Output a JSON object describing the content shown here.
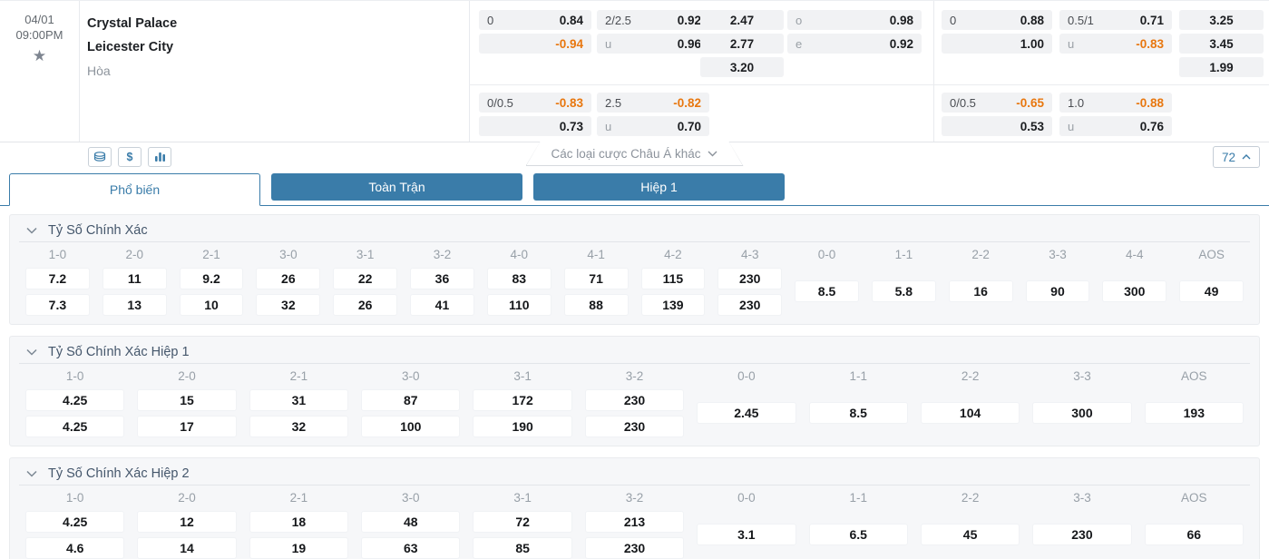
{
  "match": {
    "date": "04/01",
    "time": "09:00PM",
    "home_team": "Crystal Palace",
    "away_team": "Leicester City",
    "draw_label": "Hòa"
  },
  "odds_panel": {
    "full_time": {
      "handicap_r1": {
        "line": "0",
        "home": "0.84",
        "away": "-0.94"
      },
      "handicap_r2": {
        "line": "0/0.5",
        "home": "-0.83",
        "away": "0.73"
      },
      "over_under_r1": {
        "line": "2/2.5",
        "over": "0.92",
        "under_label": "u",
        "under": "0.96"
      },
      "over_under_r2": {
        "line": "2.5",
        "over": "-0.82",
        "under_label": "u",
        "under": "0.70"
      },
      "one_x_two": {
        "home": "2.47",
        "away": "2.77",
        "draw": "3.20"
      },
      "odd_even": {
        "odd_label": "o",
        "odd": "0.98",
        "even_label": "e",
        "even": "0.92"
      }
    },
    "first_half": {
      "handicap_r1": {
        "line": "0",
        "home": "0.88",
        "away": "1.00"
      },
      "handicap_r2": {
        "line": "0/0.5",
        "home": "-0.65",
        "away": "0.53"
      },
      "over_under_r1": {
        "line": "0.5/1",
        "over": "0.71",
        "under_label": "u",
        "under": "-0.83"
      },
      "over_under_r2": {
        "line": "1.0",
        "over": "-0.88",
        "under_label": "u",
        "under": "0.76"
      },
      "one_x_two": {
        "home": "3.25",
        "away": "3.45",
        "draw": "1.99"
      }
    }
  },
  "toolbar": {
    "icons": [
      "coins-stack-icon",
      "dollar-icon",
      "stats-bars-icon"
    ],
    "dropdown_label": "Các loại cược Châu Á khác",
    "market_count": "72"
  },
  "tabs": [
    {
      "label": "Phổ biến",
      "active": true
    },
    {
      "label": "Toàn Trận",
      "active": false
    },
    {
      "label": "Hiệp 1",
      "active": false
    }
  ],
  "colors": {
    "accent_blue": "#3a7ca9",
    "odds_negative_orange": "#e8770f"
  },
  "sections": [
    {
      "title": "Tỷ Số Chính Xác",
      "columns": [
        {
          "score": "1-0",
          "home": "7.2",
          "away": "7.3"
        },
        {
          "score": "2-0",
          "home": "11",
          "away": "13"
        },
        {
          "score": "2-1",
          "home": "9.2",
          "away": "10"
        },
        {
          "score": "3-0",
          "home": "26",
          "away": "32"
        },
        {
          "score": "3-1",
          "home": "22",
          "away": "26"
        },
        {
          "score": "3-2",
          "home": "36",
          "away": "41"
        },
        {
          "score": "4-0",
          "home": "83",
          "away": "110"
        },
        {
          "score": "4-1",
          "home": "71",
          "away": "88"
        },
        {
          "score": "4-2",
          "home": "115",
          "away": "139"
        },
        {
          "score": "4-3",
          "home": "230",
          "away": "230"
        },
        {
          "score": "0-0",
          "draw": "8.5"
        },
        {
          "score": "1-1",
          "draw": "5.8"
        },
        {
          "score": "2-2",
          "draw": "16"
        },
        {
          "score": "3-3",
          "draw": "90"
        },
        {
          "score": "4-4",
          "draw": "300"
        },
        {
          "score": "AOS",
          "draw": "49"
        }
      ]
    },
    {
      "title": "Tỷ Số Chính Xác Hiệp 1",
      "columns": [
        {
          "score": "1-0",
          "home": "4.25",
          "away": "4.25"
        },
        {
          "score": "2-0",
          "home": "15",
          "away": "17"
        },
        {
          "score": "2-1",
          "home": "31",
          "away": "32"
        },
        {
          "score": "3-0",
          "home": "87",
          "away": "100"
        },
        {
          "score": "3-1",
          "home": "172",
          "away": "190"
        },
        {
          "score": "3-2",
          "home": "230",
          "away": "230"
        },
        {
          "score": "0-0",
          "draw": "2.45"
        },
        {
          "score": "1-1",
          "draw": "8.5"
        },
        {
          "score": "2-2",
          "draw": "104"
        },
        {
          "score": "3-3",
          "draw": "300"
        },
        {
          "score": "AOS",
          "draw": "193"
        }
      ]
    },
    {
      "title": "Tỷ Số Chính Xác Hiệp 2",
      "columns": [
        {
          "score": "1-0",
          "home": "4.25",
          "away": "4.6"
        },
        {
          "score": "2-0",
          "home": "12",
          "away": "14"
        },
        {
          "score": "2-1",
          "home": "18",
          "away": "19"
        },
        {
          "score": "3-0",
          "home": "48",
          "away": "63"
        },
        {
          "score": "3-1",
          "home": "72",
          "away": "85"
        },
        {
          "score": "3-2",
          "home": "213",
          "away": "230"
        },
        {
          "score": "0-0",
          "draw": "3.1"
        },
        {
          "score": "1-1",
          "draw": "6.5"
        },
        {
          "score": "2-2",
          "draw": "45"
        },
        {
          "score": "3-3",
          "draw": "230"
        },
        {
          "score": "AOS",
          "draw": "66"
        }
      ]
    }
  ]
}
